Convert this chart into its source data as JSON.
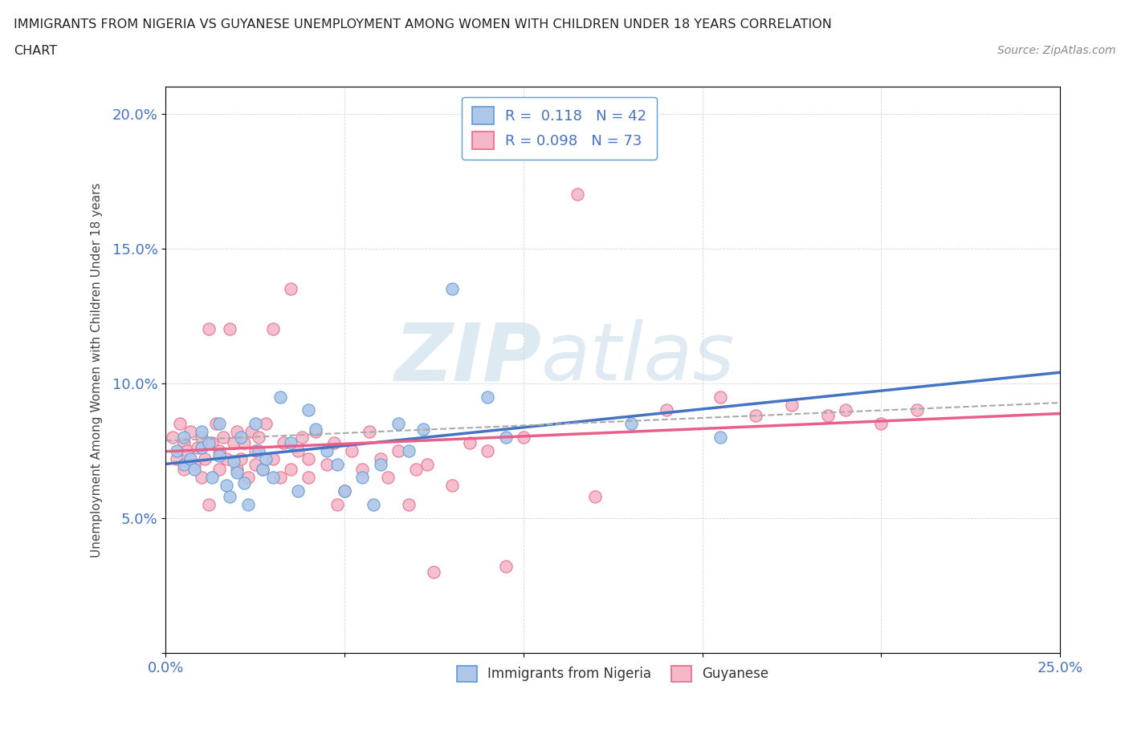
{
  "title_line1": "IMMIGRANTS FROM NIGERIA VS GUYANESE UNEMPLOYMENT AMONG WOMEN WITH CHILDREN UNDER 18 YEARS CORRELATION",
  "title_line2": "CHART",
  "source": "Source: ZipAtlas.com",
  "ylabel": "Unemployment Among Women with Children Under 18 years",
  "xlim": [
    0.0,
    0.25
  ],
  "ylim": [
    0.0,
    0.21
  ],
  "xtick_positions": [
    0.0,
    0.05,
    0.1,
    0.15,
    0.2,
    0.25
  ],
  "xtick_labels": [
    "0.0%",
    "",
    "",
    "",
    "",
    "25.0%"
  ],
  "ytick_positions": [
    0.0,
    0.05,
    0.1,
    0.15,
    0.2
  ],
  "ytick_labels": [
    "",
    "5.0%",
    "10.0%",
    "15.0%",
    "20.0%"
  ],
  "nigeria_R": 0.118,
  "nigeria_N": 42,
  "guyanese_R": 0.098,
  "guyanese_N": 73,
  "nigeria_color": "#aec6e8",
  "nigeria_edge_color": "#5b9bd5",
  "guyanese_color": "#f4b8c8",
  "guyanese_edge_color": "#e8678a",
  "nigeria_line_color": "#4472c4",
  "guyanese_line_color": "#e8608a",
  "watermark_zip": "ZIP",
  "watermark_atlas": "atlas",
  "nigeria_x": [
    0.003,
    0.005,
    0.005,
    0.007,
    0.008,
    0.01,
    0.01,
    0.012,
    0.013,
    0.015,
    0.015,
    0.017,
    0.018,
    0.019,
    0.02,
    0.021,
    0.022,
    0.023,
    0.025,
    0.026,
    0.027,
    0.028,
    0.03,
    0.032,
    0.035,
    0.037,
    0.04,
    0.042,
    0.045,
    0.048,
    0.05,
    0.055,
    0.058,
    0.06,
    0.065,
    0.068,
    0.072,
    0.08,
    0.09,
    0.095,
    0.13,
    0.155
  ],
  "nigeria_y": [
    0.075,
    0.07,
    0.08,
    0.072,
    0.068,
    0.076,
    0.082,
    0.078,
    0.065,
    0.073,
    0.085,
    0.062,
    0.058,
    0.071,
    0.067,
    0.08,
    0.063,
    0.055,
    0.085,
    0.075,
    0.068,
    0.072,
    0.065,
    0.095,
    0.078,
    0.06,
    0.09,
    0.083,
    0.075,
    0.07,
    0.06,
    0.065,
    0.055,
    0.07,
    0.085,
    0.075,
    0.083,
    0.135,
    0.095,
    0.08,
    0.085,
    0.08
  ],
  "guyanese_x": [
    0.002,
    0.003,
    0.004,
    0.005,
    0.005,
    0.006,
    0.007,
    0.008,
    0.009,
    0.01,
    0.01,
    0.011,
    0.012,
    0.012,
    0.013,
    0.014,
    0.015,
    0.015,
    0.016,
    0.017,
    0.018,
    0.019,
    0.02,
    0.02,
    0.021,
    0.022,
    0.023,
    0.024,
    0.025,
    0.025,
    0.026,
    0.027,
    0.028,
    0.03,
    0.03,
    0.032,
    0.033,
    0.035,
    0.035,
    0.037,
    0.038,
    0.04,
    0.04,
    0.042,
    0.045,
    0.047,
    0.048,
    0.05,
    0.052,
    0.055,
    0.057,
    0.06,
    0.062,
    0.065,
    0.068,
    0.07,
    0.073,
    0.075,
    0.08,
    0.085,
    0.09,
    0.095,
    0.1,
    0.115,
    0.12,
    0.14,
    0.155,
    0.165,
    0.175,
    0.185,
    0.19,
    0.2,
    0.21
  ],
  "guyanese_y": [
    0.08,
    0.072,
    0.085,
    0.068,
    0.078,
    0.075,
    0.082,
    0.07,
    0.076,
    0.08,
    0.065,
    0.072,
    0.055,
    0.12,
    0.078,
    0.085,
    0.068,
    0.075,
    0.08,
    0.072,
    0.12,
    0.078,
    0.068,
    0.082,
    0.072,
    0.078,
    0.065,
    0.082,
    0.07,
    0.075,
    0.08,
    0.068,
    0.085,
    0.072,
    0.12,
    0.065,
    0.078,
    0.068,
    0.135,
    0.075,
    0.08,
    0.072,
    0.065,
    0.082,
    0.07,
    0.078,
    0.055,
    0.06,
    0.075,
    0.068,
    0.082,
    0.072,
    0.065,
    0.075,
    0.055,
    0.068,
    0.07,
    0.03,
    0.062,
    0.078,
    0.075,
    0.032,
    0.08,
    0.17,
    0.058,
    0.09,
    0.095,
    0.088,
    0.092,
    0.088,
    0.09,
    0.085,
    0.09
  ]
}
